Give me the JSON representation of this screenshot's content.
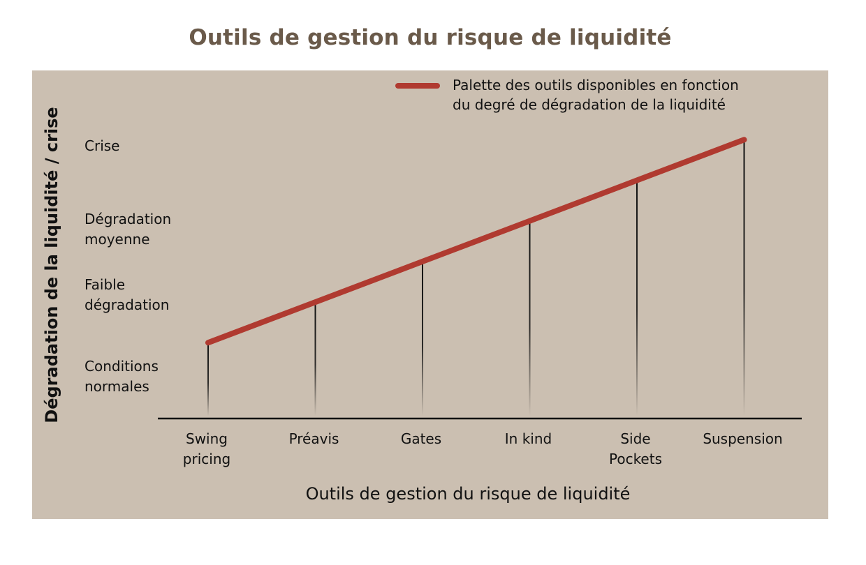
{
  "title": "Outils de gestion du risque de liquidité",
  "colors": {
    "background": "#cbbfb1",
    "line": "#b03a30",
    "title": "#6a5a4a",
    "axis": "#111111"
  },
  "chart_data": {
    "type": "line",
    "title": "Outils de gestion du risque de liquidité",
    "xlabel": "Outils de gestion du risque de liquidité",
    "ylabel": "Dégradation de la liquidité / crise",
    "categories": [
      [
        "Swing",
        "pricing"
      ],
      [
        "Préavis"
      ],
      [
        "Gates"
      ],
      [
        "In kind"
      ],
      [
        "Side",
        "Pockets"
      ],
      [
        "Suspension"
      ]
    ],
    "y_levels": [
      {
        "value": 1,
        "label": [
          "Conditions",
          "normales"
        ]
      },
      {
        "value": 2,
        "label": [
          "Faible",
          "dégradation"
        ]
      },
      {
        "value": 3,
        "label": [
          "Dégradation",
          "moyenne"
        ]
      },
      {
        "value": 4,
        "label": [
          "Crise"
        ]
      }
    ],
    "ylim": [
      0,
      4.3
    ],
    "series": [
      {
        "name": "Palette des outils disponibles en fonction du degré de dégradation de la liquidité",
        "legend_lines": [
          "Palette des outils disponibles en fonction",
          "du degré de dégradation de la liquidité"
        ],
        "values": [
          1.1,
          1.7,
          2.3,
          2.9,
          3.5,
          4.1
        ]
      }
    ],
    "legend": "top-right",
    "grid": false
  }
}
